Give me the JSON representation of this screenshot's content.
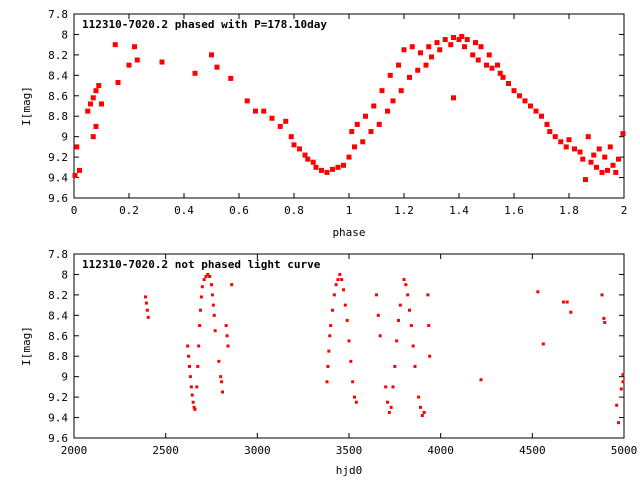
{
  "chart_data": [
    {
      "type": "scatter",
      "title": "112310-7020.2 phased with P=178.10day",
      "xlabel": "phase",
      "ylabel": "I[mag]",
      "xlim": [
        0,
        2
      ],
      "ylim": [
        9.6,
        7.8
      ],
      "y_inverted": true,
      "xticks": [
        0,
        0.2,
        0.4,
        0.6,
        0.8,
        1,
        1.2,
        1.4,
        1.6,
        1.8,
        2
      ],
      "xtick_labels": [
        "0",
        "0.2",
        "0.4",
        "0.6",
        "0.8",
        "1",
        "1.2",
        "1.4",
        "1.6",
        "1.8",
        "2"
      ],
      "yticks": [
        7.8,
        8,
        8.2,
        8.4,
        8.6,
        8.8,
        9,
        9.2,
        9.4,
        9.6
      ],
      "ytick_labels": [
        "7.8",
        "8",
        "8.2",
        "8.4",
        "8.6",
        "8.8",
        "9",
        "9.2",
        "9.4",
        "9.6"
      ],
      "color": "#ff0000",
      "grid": false,
      "points": [
        [
          0.0,
          9.38
        ],
        [
          0.01,
          9.1
        ],
        [
          0.02,
          9.33
        ],
        [
          0.05,
          8.75
        ],
        [
          0.06,
          8.68
        ],
        [
          0.07,
          8.62
        ],
        [
          0.07,
          9.0
        ],
        [
          0.08,
          8.55
        ],
        [
          0.09,
          8.5
        ],
        [
          0.08,
          8.9
        ],
        [
          0.1,
          8.68
        ],
        [
          0.15,
          8.1
        ],
        [
          0.16,
          8.47
        ],
        [
          0.2,
          8.3
        ],
        [
          0.22,
          8.12
        ],
        [
          0.23,
          8.25
        ],
        [
          0.32,
          8.27
        ],
        [
          0.44,
          8.38
        ],
        [
          0.5,
          8.2
        ],
        [
          0.52,
          8.32
        ],
        [
          0.57,
          8.43
        ],
        [
          0.63,
          8.65
        ],
        [
          0.66,
          8.75
        ],
        [
          0.69,
          8.75
        ],
        [
          0.72,
          8.82
        ],
        [
          0.75,
          8.9
        ],
        [
          0.77,
          8.85
        ],
        [
          0.79,
          9.0
        ],
        [
          0.8,
          9.08
        ],
        [
          0.82,
          9.12
        ],
        [
          0.84,
          9.18
        ],
        [
          0.85,
          9.22
        ],
        [
          0.87,
          9.25
        ],
        [
          0.88,
          9.3
        ],
        [
          0.9,
          9.33
        ],
        [
          0.92,
          9.35
        ],
        [
          0.94,
          9.32
        ],
        [
          0.96,
          9.3
        ],
        [
          0.98,
          9.28
        ],
        [
          1.0,
          9.2
        ],
        [
          1.01,
          8.95
        ],
        [
          1.02,
          9.1
        ],
        [
          1.03,
          8.88
        ],
        [
          1.05,
          9.05
        ],
        [
          1.06,
          8.8
        ],
        [
          1.08,
          8.95
        ],
        [
          1.09,
          8.7
        ],
        [
          1.11,
          8.88
        ],
        [
          1.12,
          8.55
        ],
        [
          1.14,
          8.75
        ],
        [
          1.15,
          8.4
        ],
        [
          1.16,
          8.65
        ],
        [
          1.18,
          8.3
        ],
        [
          1.19,
          8.55
        ],
        [
          1.2,
          8.15
        ],
        [
          1.22,
          8.42
        ],
        [
          1.23,
          8.12
        ],
        [
          1.25,
          8.35
        ],
        [
          1.26,
          8.18
        ],
        [
          1.28,
          8.3
        ],
        [
          1.29,
          8.12
        ],
        [
          1.3,
          8.22
        ],
        [
          1.32,
          8.08
        ],
        [
          1.33,
          8.15
        ],
        [
          1.35,
          8.05
        ],
        [
          1.37,
          8.1
        ],
        [
          1.38,
          8.03
        ],
        [
          1.4,
          8.05
        ],
        [
          1.41,
          8.02
        ],
        [
          1.42,
          8.12
        ],
        [
          1.43,
          8.05
        ],
        [
          1.45,
          8.2
        ],
        [
          1.46,
          8.08
        ],
        [
          1.47,
          8.25
        ],
        [
          1.48,
          8.12
        ],
        [
          1.5,
          8.3
        ],
        [
          1.51,
          8.2
        ],
        [
          1.52,
          8.33
        ],
        [
          1.54,
          8.3
        ],
        [
          1.55,
          8.38
        ],
        [
          1.56,
          8.42
        ],
        [
          1.58,
          8.48
        ],
        [
          1.6,
          8.55
        ],
        [
          1.62,
          8.6
        ],
        [
          1.64,
          8.65
        ],
        [
          1.66,
          8.7
        ],
        [
          1.68,
          8.75
        ],
        [
          1.7,
          8.8
        ],
        [
          1.72,
          8.88
        ],
        [
          1.73,
          8.95
        ],
        [
          1.75,
          9.0
        ],
        [
          1.77,
          9.05
        ],
        [
          1.79,
          9.1
        ],
        [
          1.8,
          9.03
        ],
        [
          1.82,
          9.12
        ],
        [
          1.84,
          9.15
        ],
        [
          1.85,
          9.22
        ],
        [
          1.86,
          9.42
        ],
        [
          1.87,
          9.0
        ],
        [
          1.88,
          9.25
        ],
        [
          1.89,
          9.18
        ],
        [
          1.9,
          9.3
        ],
        [
          1.91,
          9.12
        ],
        [
          1.92,
          9.35
        ],
        [
          1.93,
          9.2
        ],
        [
          1.94,
          9.33
        ],
        [
          1.95,
          9.1
        ],
        [
          1.96,
          9.28
        ],
        [
          1.97,
          9.35
        ],
        [
          1.98,
          9.22
        ],
        [
          2.0,
          8.97
        ],
        [
          1.38,
          8.62
        ]
      ]
    },
    {
      "type": "scatter",
      "title": "112310-7020.2 not phased light curve",
      "xlabel": "hjd0",
      "ylabel": "I[mag]",
      "xlim": [
        2000,
        5000
      ],
      "ylim": [
        9.6,
        7.8
      ],
      "y_inverted": true,
      "xticks": [
        2000,
        2500,
        3000,
        3500,
        4000,
        4500,
        5000
      ],
      "xtick_labels": [
        "2000",
        "2500",
        "3000",
        "3500",
        "4000",
        "4500",
        "5000"
      ],
      "yticks": [
        7.8,
        8,
        8.2,
        8.4,
        8.6,
        8.8,
        9,
        9.2,
        9.4,
        9.6
      ],
      "ytick_labels": [
        "7.8",
        "8",
        "8.2",
        "8.4",
        "8.6",
        "8.8",
        "9",
        "9.2",
        "9.4",
        "9.6"
      ],
      "color": "#ff0000",
      "grid": false,
      "points": [
        [
          2390,
          8.22
        ],
        [
          2395,
          8.28
        ],
        [
          2400,
          8.35
        ],
        [
          2405,
          8.42
        ],
        [
          2620,
          8.7
        ],
        [
          2625,
          8.8
        ],
        [
          2630,
          8.9
        ],
        [
          2635,
          9.0
        ],
        [
          2640,
          9.1
        ],
        [
          2645,
          9.18
        ],
        [
          2650,
          9.25
        ],
        [
          2655,
          9.3
        ],
        [
          2660,
          9.32
        ],
        [
          2670,
          9.1
        ],
        [
          2675,
          8.9
        ],
        [
          2680,
          8.7
        ],
        [
          2685,
          8.5
        ],
        [
          2690,
          8.35
        ],
        [
          2695,
          8.22
        ],
        [
          2700,
          8.12
        ],
        [
          2710,
          8.05
        ],
        [
          2720,
          8.02
        ],
        [
          2730,
          8.0
        ],
        [
          2740,
          8.02
        ],
        [
          2750,
          8.1
        ],
        [
          2755,
          8.2
        ],
        [
          2760,
          8.3
        ],
        [
          2765,
          8.4
        ],
        [
          2770,
          8.55
        ],
        [
          2790,
          8.85
        ],
        [
          2800,
          9.0
        ],
        [
          2805,
          9.05
        ],
        [
          2810,
          9.15
        ],
        [
          2830,
          8.5
        ],
        [
          2835,
          8.6
        ],
        [
          2840,
          8.7
        ],
        [
          2860,
          8.1
        ],
        [
          3380,
          9.05
        ],
        [
          3385,
          8.9
        ],
        [
          3390,
          8.75
        ],
        [
          3395,
          8.6
        ],
        [
          3400,
          8.5
        ],
        [
          3410,
          8.35
        ],
        [
          3420,
          8.2
        ],
        [
          3430,
          8.1
        ],
        [
          3440,
          8.05
        ],
        [
          3450,
          8.0
        ],
        [
          3460,
          8.05
        ],
        [
          3470,
          8.15
        ],
        [
          3480,
          8.3
        ],
        [
          3490,
          8.45
        ],
        [
          3500,
          8.65
        ],
        [
          3510,
          8.85
        ],
        [
          3520,
          9.05
        ],
        [
          3530,
          9.2
        ],
        [
          3540,
          9.25
        ],
        [
          3650,
          8.2
        ],
        [
          3660,
          8.4
        ],
        [
          3670,
          8.6
        ],
        [
          3700,
          9.1
        ],
        [
          3710,
          9.25
        ],
        [
          3720,
          9.35
        ],
        [
          3730,
          9.3
        ],
        [
          3740,
          9.1
        ],
        [
          3750,
          8.9
        ],
        [
          3760,
          8.65
        ],
        [
          3770,
          8.45
        ],
        [
          3780,
          8.3
        ],
        [
          3800,
          8.05
        ],
        [
          3810,
          8.1
        ],
        [
          3820,
          8.2
        ],
        [
          3830,
          8.35
        ],
        [
          3840,
          8.5
        ],
        [
          3850,
          8.7
        ],
        [
          3860,
          8.9
        ],
        [
          3880,
          9.2
        ],
        [
          3890,
          9.3
        ],
        [
          3900,
          9.38
        ],
        [
          3910,
          9.35
        ],
        [
          3930,
          8.2
        ],
        [
          3935,
          8.5
        ],
        [
          3940,
          8.8
        ],
        [
          4220,
          9.03
        ],
        [
          4530,
          8.17
        ],
        [
          4560,
          8.68
        ],
        [
          4670,
          8.27
        ],
        [
          4690,
          8.27
        ],
        [
          4710,
          8.37
        ],
        [
          4880,
          8.2
        ],
        [
          4890,
          8.43
        ],
        [
          4895,
          8.47
        ],
        [
          4960,
          9.28
        ],
        [
          4970,
          9.45
        ],
        [
          4985,
          9.12
        ],
        [
          4995,
          8.98
        ],
        [
          5000,
          9.05
        ]
      ]
    }
  ]
}
